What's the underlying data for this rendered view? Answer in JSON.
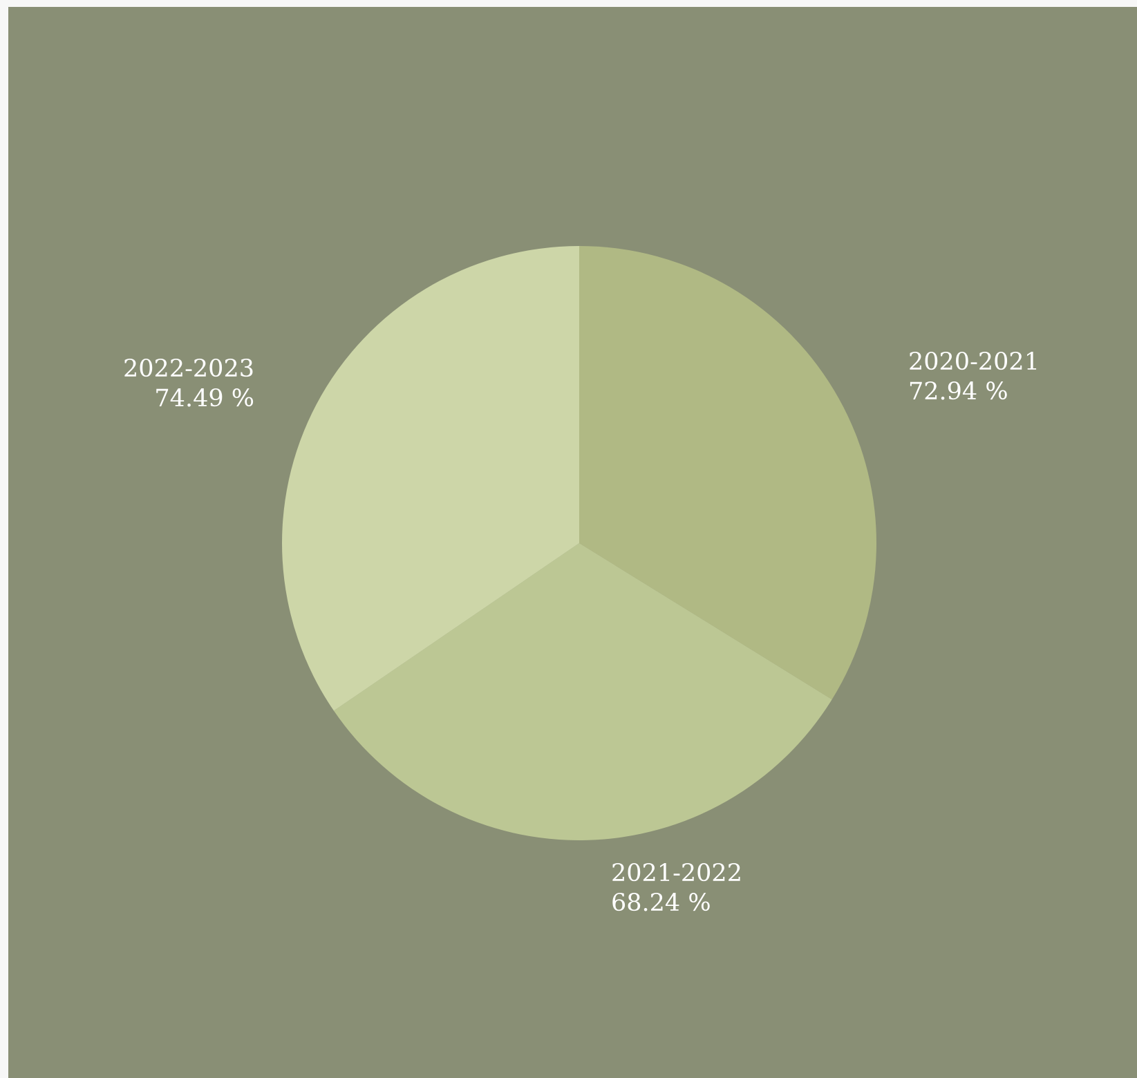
{
  "chart_data": {
    "type": "pie",
    "slices": [
      {
        "label": "2020-2021",
        "value": 72.94,
        "value_text": "72.94 %",
        "color": "#b0b984"
      },
      {
        "label": "2021-2022",
        "value": 68.24,
        "value_text": "68.24 %",
        "color": "#bcc794"
      },
      {
        "label": "2022-2023",
        "value": 74.49,
        "value_text": "74.49 %",
        "color": "#cdd6a8"
      }
    ],
    "background_color": "#898f75",
    "label_color": "#ffffff",
    "start_angle": "12 o'clock",
    "direction": "clockwise"
  }
}
